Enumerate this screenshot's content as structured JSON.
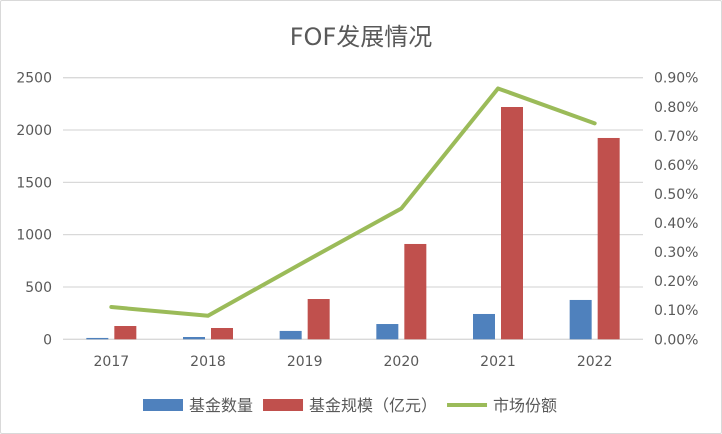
{
  "chart_data": {
    "type": "bar",
    "title": "FOF发展情况",
    "categories": [
      "2017",
      "2018",
      "2019",
      "2020",
      "2021",
      "2022"
    ],
    "series": [
      {
        "name": "基金数量",
        "kind": "bar",
        "axis": "left",
        "color": "#4f81bd",
        "values": [
          13,
          22,
          80,
          146,
          242,
          376
        ]
      },
      {
        "name": "基金规模（亿元）",
        "kind": "bar",
        "axis": "left",
        "color": "#c0504d",
        "values": [
          127,
          108,
          385,
          911,
          2220,
          1924
        ]
      },
      {
        "name": "市场份额",
        "kind": "line",
        "axis": "right",
        "color": "#9bbb59",
        "values": [
          0.111,
          0.081,
          0.267,
          0.45,
          0.863,
          0.743
        ]
      }
    ],
    "y_left": {
      "range": [
        0,
        2500
      ],
      "ticks": [
        "0",
        "500",
        "1000",
        "1500",
        "2000",
        "2500"
      ]
    },
    "y_right": {
      "range": [
        0,
        0.9
      ],
      "unit": "%",
      "ticks": [
        "0.00%",
        "0.10%",
        "0.20%",
        "0.30%",
        "0.40%",
        "0.50%",
        "0.60%",
        "0.70%",
        "0.80%",
        "0.90%"
      ]
    },
    "grid": true,
    "legend": "bottom"
  }
}
